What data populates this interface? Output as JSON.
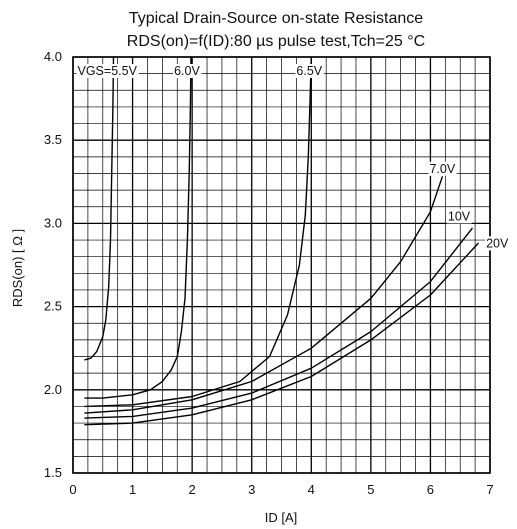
{
  "chart_data": {
    "type": "line",
    "title": "Typical Drain-Source on-state Resistance",
    "subtitle": "RDS(on)=f(ID):80  µs pulse test,Tch=25  °C",
    "xlabel": "ID [A]",
    "ylabel": "RDS(on) [ Ω ]",
    "xlim": [
      0,
      7
    ],
    "ylim": [
      1.5,
      4.0
    ],
    "xticks": [
      "0",
      "1",
      "2",
      "3",
      "4",
      "5",
      "6",
      "7"
    ],
    "yticks": [
      "1.5",
      "2.0",
      "2.5",
      "3.0",
      "3.5",
      "4.0"
    ],
    "grid": true,
    "series": [
      {
        "name": "VGS=5.5V",
        "x": [
          0.2,
          0.3,
          0.4,
          0.5,
          0.55,
          0.6,
          0.63,
          0.65,
          0.67,
          0.68
        ],
        "y": [
          2.18,
          2.19,
          2.23,
          2.32,
          2.42,
          2.62,
          2.9,
          3.3,
          3.7,
          4.0
        ]
      },
      {
        "name": "6.0V",
        "x": [
          0.2,
          0.5,
          1.0,
          1.3,
          1.5,
          1.65,
          1.75,
          1.82,
          1.88,
          1.92,
          1.95,
          1.97,
          1.98
        ],
        "y": [
          1.95,
          1.95,
          1.97,
          2.0,
          2.05,
          2.12,
          2.2,
          2.35,
          2.55,
          2.9,
          3.3,
          3.7,
          4.0
        ]
      },
      {
        "name": "6.5V",
        "x": [
          0.2,
          1.0,
          2.0,
          2.8,
          3.3,
          3.6,
          3.8,
          3.9,
          3.95,
          3.98,
          4.0
        ],
        "y": [
          1.9,
          1.91,
          1.96,
          2.05,
          2.2,
          2.45,
          2.75,
          3.05,
          3.4,
          3.75,
          4.0
        ]
      },
      {
        "name": "7.0V",
        "x": [
          0.2,
          1.0,
          2.0,
          3.0,
          4.0,
          5.0,
          5.5,
          6.0,
          6.2
        ],
        "y": [
          1.86,
          1.88,
          1.94,
          2.05,
          2.25,
          2.55,
          2.77,
          3.07,
          3.28
        ]
      },
      {
        "name": "10V",
        "x": [
          0.2,
          1.0,
          2.0,
          3.0,
          4.0,
          5.0,
          6.0,
          6.7
        ],
        "y": [
          1.83,
          1.84,
          1.89,
          1.98,
          2.13,
          2.35,
          2.65,
          2.97
        ]
      },
      {
        "name": "20V",
        "x": [
          0.2,
          1.0,
          2.0,
          3.0,
          4.0,
          5.0,
          6.0,
          6.8
        ],
        "y": [
          1.79,
          1.8,
          1.85,
          1.94,
          2.08,
          2.3,
          2.57,
          2.88
        ]
      }
    ]
  }
}
